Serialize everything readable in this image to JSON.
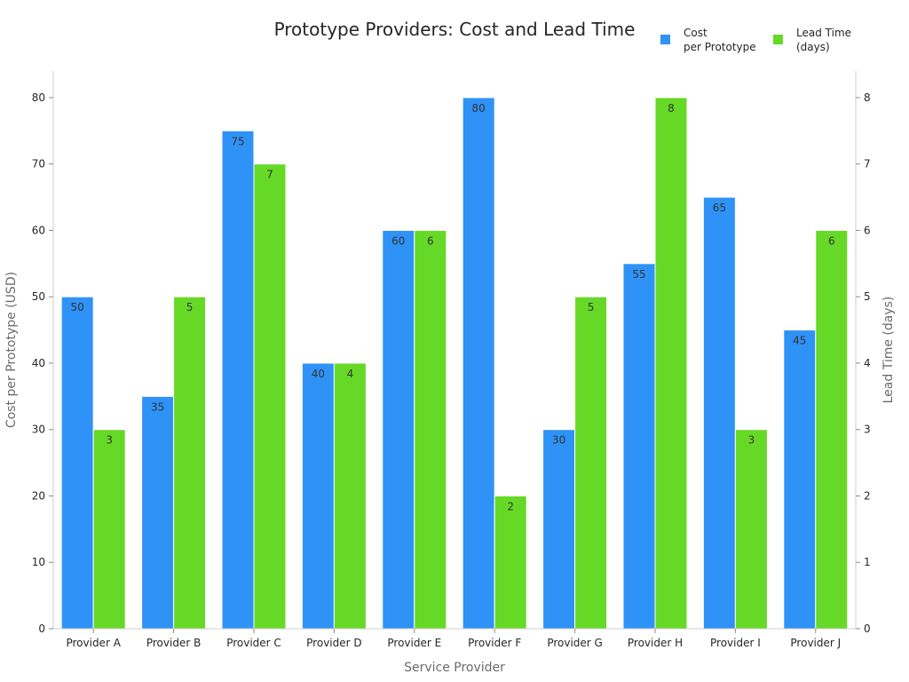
{
  "chart_data": {
    "type": "bar",
    "title": "Prototype Providers: Cost and Lead Time",
    "xlabel": "Service Provider",
    "ylabel_left": "Cost per Prototype (USD)",
    "ylabel_right": "Lead Time (days)",
    "ylim_left": [
      0,
      84
    ],
    "ylim_right": [
      0,
      8.4
    ],
    "yticks_left": [
      0,
      10,
      20,
      30,
      40,
      50,
      60,
      70,
      80
    ],
    "yticks_right": [
      0,
      1,
      2,
      3,
      4,
      5,
      6,
      7,
      8
    ],
    "grid": false,
    "legend_position": "top-right",
    "categories": [
      "Provider A",
      "Provider B",
      "Provider C",
      "Provider D",
      "Provider E",
      "Provider F",
      "Provider G",
      "Provider H",
      "Provider I",
      "Provider J"
    ],
    "series": [
      {
        "name_lines": [
          "Cost",
          "per Prototype"
        ],
        "axis": "left",
        "color": "#2f92f7",
        "values": [
          50,
          35,
          75,
          40,
          60,
          80,
          30,
          55,
          65,
          45
        ]
      },
      {
        "name_lines": [
          "Lead Time",
          "(days)"
        ],
        "axis": "right",
        "color": "#66d926",
        "values": [
          3,
          5,
          7,
          4,
          6,
          2,
          5,
          8,
          3,
          6
        ]
      }
    ]
  }
}
